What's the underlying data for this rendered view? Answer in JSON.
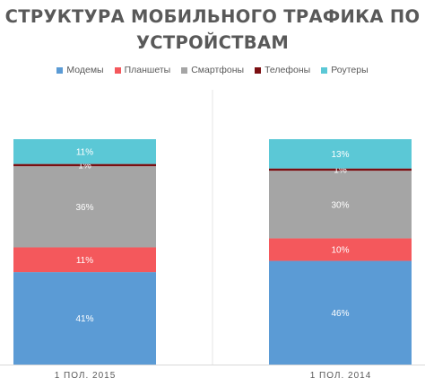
{
  "chart_data": {
    "type": "bar",
    "stacked": true,
    "normalized_percent": true,
    "title": "СТРУКТУРА МОБИЛЬНОГО ТРАФИКА ПО УСТРОЙСТВАМ",
    "legend_position": "top",
    "categories": [
      "1 ПОЛ. 2015",
      "1 ПОЛ. 2014"
    ],
    "series": [
      {
        "name": "Модемы",
        "color": "#5b9bd5",
        "values": [
          41,
          46
        ],
        "labels": [
          "41%",
          "46%"
        ]
      },
      {
        "name": "Планшеты",
        "color": "#f4585c",
        "values": [
          11,
          10
        ],
        "labels": [
          "11%",
          "10%"
        ]
      },
      {
        "name": "Смартфоны",
        "color": "#a5a5a5",
        "values": [
          36,
          30
        ],
        "labels": [
          "36%",
          "30%"
        ]
      },
      {
        "name": "Телефоны",
        "color": "#7b0f12",
        "values": [
          1,
          1
        ],
        "labels": [
          "1%",
          "1%"
        ]
      },
      {
        "name": "Роутеры",
        "color": "#5bc8d6",
        "values": [
          11,
          13
        ],
        "labels": [
          "11%",
          "13%"
        ]
      }
    ],
    "grid": false
  }
}
